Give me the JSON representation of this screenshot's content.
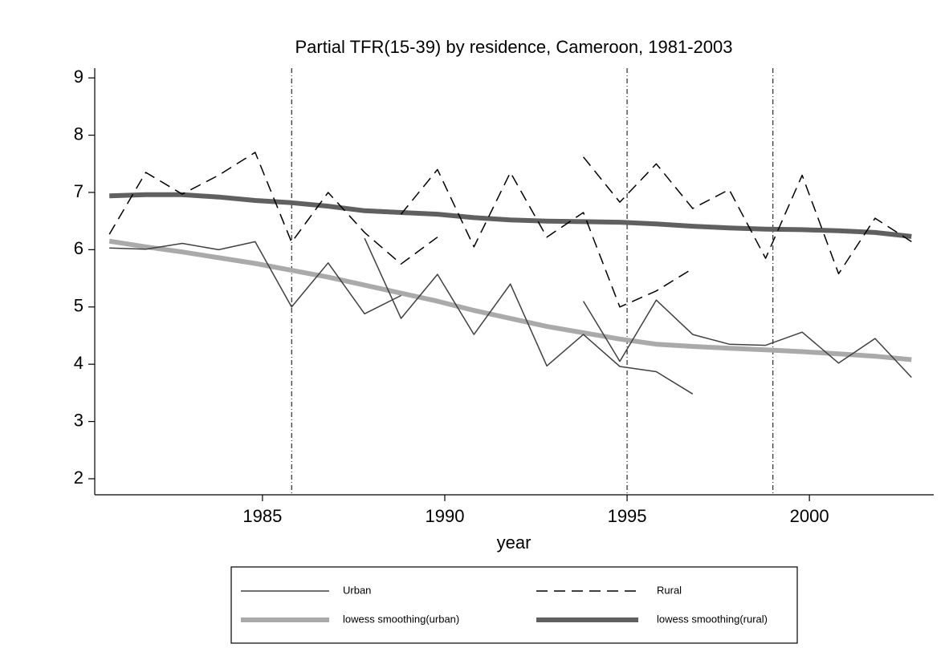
{
  "chart_data": {
    "type": "line",
    "title": "Partial TFR(15-39) by residence, Cameroon, 1981-2003",
    "x_label": "year",
    "xlim": [
      1980.4,
      2003.41
    ],
    "ylim": [
      1.72,
      9.17
    ],
    "xticks": [
      1985,
      1990,
      1995,
      2000
    ],
    "yticks": [
      2,
      3,
      4,
      5,
      6,
      7,
      8,
      9
    ],
    "reference_lines_x": [
      1985.8,
      1995,
      1999
    ],
    "series": [
      {
        "name": "Urban",
        "color": "#404040",
        "style": "solid",
        "width": 1.5,
        "x": [
          1980.8,
          1981.8,
          1982.8,
          1983.8,
          1984.8,
          1985.8,
          1986.8,
          1987.8,
          1988.8,
          null,
          1987.8,
          1988.8,
          1989.8,
          1990.8,
          1991.8,
          1992.8,
          1993.8,
          1994.8,
          1995.8,
          1996.8,
          null,
          1993.8,
          1994.8,
          1995.8,
          1996.8,
          1997.8,
          1998.8,
          1999.8,
          2000.8,
          2001.8,
          2002.8
        ],
        "values": [
          6.03,
          6.01,
          6.11,
          6.0,
          6.14,
          5.0,
          5.77,
          4.88,
          5.2,
          null,
          6.2,
          4.8,
          5.57,
          4.52,
          5.4,
          3.97,
          4.52,
          3.96,
          3.87,
          3.48,
          null,
          5.1,
          4.05,
          5.12,
          4.52,
          4.35,
          4.33,
          4.56,
          4.02,
          4.45,
          3.77
        ]
      },
      {
        "name": "Rural",
        "color": "#000000",
        "style": "dashed",
        "width": 1.5,
        "x": [
          1980.8,
          1981.8,
          1982.8,
          1983.8,
          1984.8,
          1985.8,
          1986.8,
          1987.8,
          1988.8,
          1989.8,
          null,
          1988.8,
          1989.8,
          1990.8,
          1991.8,
          1992.8,
          1993.8,
          1994.8,
          1995.8,
          1996.8,
          null,
          1993.8,
          1994.8,
          1995.8,
          1996.8,
          1997.8,
          1998.8,
          1999.8,
          2000.8,
          2001.8,
          2002.8
        ],
        "values": [
          6.27,
          7.35,
          6.97,
          7.3,
          7.7,
          6.13,
          7.0,
          6.3,
          5.75,
          6.22,
          null,
          6.62,
          7.4,
          6.05,
          7.35,
          6.22,
          6.65,
          5.0,
          5.28,
          5.67,
          null,
          7.62,
          6.83,
          7.5,
          6.72,
          7.05,
          5.85,
          7.3,
          5.58,
          6.55,
          6.14
        ]
      },
      {
        "name": "lowess smoothing(urban)",
        "color": "#aaaaaa",
        "style": "solid",
        "width": 6,
        "x": [
          1980.8,
          1981.8,
          1982.8,
          1983.8,
          1984.8,
          1985.8,
          1986.8,
          1987.8,
          1988.8,
          1989.8,
          1990.8,
          1991.8,
          1992.8,
          1993.8,
          1994.8,
          1995.8,
          1996.8,
          1997.8,
          1998.8,
          1999.8,
          2000.8,
          2001.8,
          2002.8
        ],
        "values": [
          6.15,
          6.05,
          5.96,
          5.86,
          5.76,
          5.64,
          5.52,
          5.38,
          5.24,
          5.1,
          4.94,
          4.8,
          4.66,
          4.55,
          4.44,
          4.35,
          4.31,
          4.28,
          4.25,
          4.22,
          4.18,
          4.14,
          4.08
        ]
      },
      {
        "name": "lowess smoothing(rural)",
        "color": "#606060",
        "style": "solid",
        "width": 6,
        "x": [
          1980.8,
          1981.8,
          1982.8,
          1983.8,
          1984.8,
          1985.8,
          1986.8,
          1987.8,
          1988.8,
          1989.8,
          1990.8,
          1991.8,
          1992.8,
          1993.8,
          1994.8,
          1995.8,
          1996.8,
          1997.8,
          1998.8,
          1999.8,
          2000.8,
          2001.8,
          2002.8
        ],
        "values": [
          6.94,
          6.96,
          6.96,
          6.92,
          6.86,
          6.82,
          6.76,
          6.68,
          6.65,
          6.62,
          6.56,
          6.52,
          6.5,
          6.49,
          6.48,
          6.45,
          6.41,
          6.38,
          6.36,
          6.35,
          6.33,
          6.3,
          6.23
        ]
      }
    ]
  }
}
